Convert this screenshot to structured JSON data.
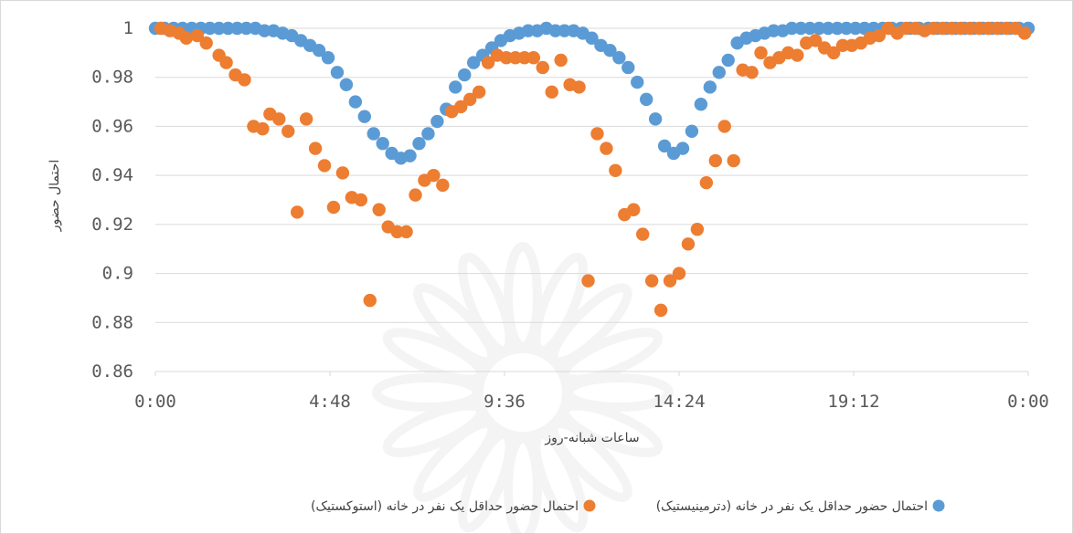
{
  "chart_data": {
    "type": "scatter",
    "xlabel": "ساعات شبانه-روز",
    "ylabel": "احتمال حضور",
    "xlim": [
      0,
      24
    ],
    "ylim": [
      0.86,
      1
    ],
    "x_ticks": [
      "0:00",
      "4:48",
      "9:36",
      "14:24",
      "19:12",
      "0:00"
    ],
    "y_ticks": [
      "0.86",
      "0.88",
      "0.9",
      "0.92",
      "0.94",
      "0.96",
      "0.98",
      "1"
    ],
    "grid": "horizontal",
    "legend_position": "bottom",
    "series": [
      {
        "name": "احتمال حضور حداقل یک نفر در خانه (دترمینیستیک)",
        "color": "#5B9BD5",
        "points": [
          [
            0.0,
            1.0
          ],
          [
            0.25,
            1.0
          ],
          [
            0.5,
            1.0
          ],
          [
            0.75,
            1.0
          ],
          [
            1.0,
            1.0
          ],
          [
            1.25,
            1.0
          ],
          [
            1.5,
            1.0
          ],
          [
            1.75,
            1.0
          ],
          [
            2.0,
            1.0
          ],
          [
            2.25,
            1.0
          ],
          [
            2.5,
            1.0
          ],
          [
            2.75,
            1.0
          ],
          [
            3.0,
            0.999
          ],
          [
            3.25,
            0.999
          ],
          [
            3.5,
            0.998
          ],
          [
            3.75,
            0.997
          ],
          [
            4.0,
            0.995
          ],
          [
            4.25,
            0.993
          ],
          [
            4.5,
            0.991
          ],
          [
            4.75,
            0.988
          ],
          [
            5.0,
            0.982
          ],
          [
            5.25,
            0.977
          ],
          [
            5.5,
            0.97
          ],
          [
            5.75,
            0.964
          ],
          [
            6.0,
            0.957
          ],
          [
            6.25,
            0.953
          ],
          [
            6.5,
            0.949
          ],
          [
            6.75,
            0.947
          ],
          [
            7.0,
            0.948
          ],
          [
            7.25,
            0.953
          ],
          [
            7.5,
            0.957
          ],
          [
            7.75,
            0.962
          ],
          [
            8.0,
            0.967
          ],
          [
            8.25,
            0.976
          ],
          [
            8.5,
            0.981
          ],
          [
            8.75,
            0.986
          ],
          [
            9.0,
            0.989
          ],
          [
            9.25,
            0.992
          ],
          [
            9.5,
            0.995
          ],
          [
            9.75,
            0.997
          ],
          [
            10.0,
            0.998
          ],
          [
            10.25,
            0.999
          ],
          [
            10.5,
            0.999
          ],
          [
            10.75,
            1.0
          ],
          [
            11.0,
            0.999
          ],
          [
            11.25,
            0.999
          ],
          [
            11.5,
            0.999
          ],
          [
            11.75,
            0.998
          ],
          [
            12.0,
            0.996
          ],
          [
            12.25,
            0.993
          ],
          [
            12.5,
            0.991
          ],
          [
            12.75,
            0.988
          ],
          [
            13.0,
            0.984
          ],
          [
            13.25,
            0.978
          ],
          [
            13.5,
            0.971
          ],
          [
            13.75,
            0.963
          ],
          [
            14.0,
            0.952
          ],
          [
            14.25,
            0.949
          ],
          [
            14.5,
            0.951
          ],
          [
            14.75,
            0.958
          ],
          [
            15.0,
            0.969
          ],
          [
            15.25,
            0.976
          ],
          [
            15.5,
            0.982
          ],
          [
            15.75,
            0.987
          ],
          [
            16.0,
            0.994
          ],
          [
            16.25,
            0.996
          ],
          [
            16.5,
            0.997
          ],
          [
            16.75,
            0.998
          ],
          [
            17.0,
            0.999
          ],
          [
            17.25,
            0.999
          ],
          [
            17.5,
            1.0
          ],
          [
            17.75,
            1.0
          ],
          [
            18.0,
            1.0
          ],
          [
            18.25,
            1.0
          ],
          [
            18.5,
            1.0
          ],
          [
            18.75,
            1.0
          ],
          [
            19.0,
            1.0
          ],
          [
            19.25,
            1.0
          ],
          [
            19.5,
            1.0
          ],
          [
            19.75,
            1.0
          ],
          [
            20.0,
            1.0
          ],
          [
            20.25,
            1.0
          ],
          [
            20.5,
            1.0
          ],
          [
            20.75,
            1.0
          ],
          [
            21.0,
            1.0
          ],
          [
            21.25,
            1.0
          ],
          [
            21.5,
            1.0
          ],
          [
            21.75,
            1.0
          ],
          [
            22.0,
            1.0
          ],
          [
            22.25,
            1.0
          ],
          [
            22.5,
            1.0
          ],
          [
            22.75,
            1.0
          ],
          [
            23.0,
            1.0
          ],
          [
            23.25,
            1.0
          ],
          [
            23.5,
            1.0
          ],
          [
            23.75,
            1.0
          ],
          [
            24.0,
            1.0
          ]
        ]
      },
      {
        "name": "احتمال حضور حداقل یک نفر در خانه (استوکستیک)",
        "color": "#ED7D31",
        "points": [
          [
            0.15,
            1.0
          ],
          [
            0.4,
            0.999
          ],
          [
            0.65,
            0.998
          ],
          [
            0.85,
            0.996
          ],
          [
            1.15,
            0.997
          ],
          [
            1.4,
            0.994
          ],
          [
            1.75,
            0.989
          ],
          [
            1.95,
            0.986
          ],
          [
            2.2,
            0.981
          ],
          [
            2.45,
            0.979
          ],
          [
            2.7,
            0.96
          ],
          [
            2.95,
            0.959
          ],
          [
            3.15,
            0.965
          ],
          [
            3.4,
            0.963
          ],
          [
            3.65,
            0.958
          ],
          [
            3.9,
            0.925
          ],
          [
            4.15,
            0.963
          ],
          [
            4.4,
            0.951
          ],
          [
            4.65,
            0.944
          ],
          [
            4.9,
            0.927
          ],
          [
            5.15,
            0.941
          ],
          [
            5.4,
            0.931
          ],
          [
            5.65,
            0.93
          ],
          [
            5.9,
            0.889
          ],
          [
            6.15,
            0.926
          ],
          [
            6.4,
            0.919
          ],
          [
            6.65,
            0.917
          ],
          [
            6.9,
            0.917
          ],
          [
            7.15,
            0.932
          ],
          [
            7.4,
            0.938
          ],
          [
            7.65,
            0.94
          ],
          [
            7.9,
            0.936
          ],
          [
            8.15,
            0.966
          ],
          [
            8.4,
            0.968
          ],
          [
            8.65,
            0.971
          ],
          [
            8.9,
            0.974
          ],
          [
            9.15,
            0.986
          ],
          [
            9.4,
            0.989
          ],
          [
            9.65,
            0.988
          ],
          [
            9.9,
            0.988
          ],
          [
            10.15,
            0.988
          ],
          [
            10.4,
            0.988
          ],
          [
            10.65,
            0.984
          ],
          [
            10.9,
            0.974
          ],
          [
            11.15,
            0.987
          ],
          [
            11.4,
            0.977
          ],
          [
            11.65,
            0.976
          ],
          [
            11.9,
            0.897
          ],
          [
            12.15,
            0.957
          ],
          [
            12.4,
            0.951
          ],
          [
            12.65,
            0.942
          ],
          [
            12.9,
            0.924
          ],
          [
            13.15,
            0.926
          ],
          [
            13.4,
            0.916
          ],
          [
            13.65,
            0.897
          ],
          [
            13.9,
            0.885
          ],
          [
            14.15,
            0.897
          ],
          [
            14.4,
            0.9
          ],
          [
            14.65,
            0.912
          ],
          [
            14.9,
            0.918
          ],
          [
            15.15,
            0.937
          ],
          [
            15.4,
            0.946
          ],
          [
            15.65,
            0.96
          ],
          [
            15.9,
            0.946
          ],
          [
            16.15,
            0.983
          ],
          [
            16.4,
            0.982
          ],
          [
            16.65,
            0.99
          ],
          [
            16.9,
            0.986
          ],
          [
            17.15,
            0.988
          ],
          [
            17.4,
            0.99
          ],
          [
            17.65,
            0.989
          ],
          [
            17.9,
            0.994
          ],
          [
            18.15,
            0.995
          ],
          [
            18.4,
            0.992
          ],
          [
            18.65,
            0.99
          ],
          [
            18.9,
            0.993
          ],
          [
            19.15,
            0.993
          ],
          [
            19.4,
            0.994
          ],
          [
            19.65,
            0.996
          ],
          [
            19.9,
            0.997
          ],
          [
            20.15,
            1.0
          ],
          [
            20.4,
            0.998
          ],
          [
            20.65,
            1.0
          ],
          [
            20.9,
            1.0
          ],
          [
            21.15,
            0.999
          ],
          [
            21.4,
            1.0
          ],
          [
            21.65,
            1.0
          ],
          [
            21.9,
            1.0
          ],
          [
            22.15,
            1.0
          ],
          [
            22.4,
            1.0
          ],
          [
            22.65,
            1.0
          ],
          [
            22.9,
            1.0
          ],
          [
            23.15,
            1.0
          ],
          [
            23.4,
            1.0
          ],
          [
            23.65,
            1.0
          ],
          [
            23.9,
            0.998
          ]
        ]
      }
    ]
  }
}
